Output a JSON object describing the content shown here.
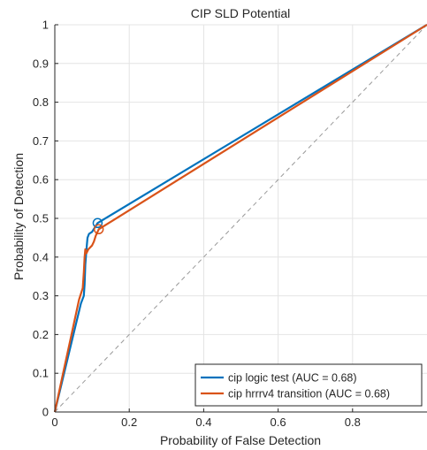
{
  "chart_data": {
    "type": "line",
    "title": "CIP SLD Potential",
    "xlabel": "Probability of False Detection",
    "ylabel": "Probability of Detection",
    "xlim": [
      0,
      1
    ],
    "ylim": [
      0,
      1
    ],
    "xticks": [
      0,
      0.2,
      0.4,
      0.6,
      0.8
    ],
    "xtick_labels": [
      "0",
      "0.2",
      "0.4",
      "0.6",
      "0.8"
    ],
    "yticks": [
      0,
      0.1,
      0.2,
      0.3,
      0.4,
      0.5,
      0.6,
      0.7,
      0.8,
      0.9,
      1
    ],
    "ytick_labels": [
      "0",
      "0.1",
      "0.2",
      "0.3",
      "0.4",
      "0.5",
      "0.6",
      "0.7",
      "0.8",
      "0.9",
      "1"
    ],
    "grid": true,
    "legend_position": "bottom-right",
    "reference_line": {
      "x": [
        0,
        1
      ],
      "y": [
        0,
        1
      ],
      "style": "dashed",
      "color": "#999999"
    },
    "series": [
      {
        "name": "cip logic test (AUC = 0.68)",
        "color": "#0072BD",
        "x": [
          0,
          0.02,
          0.045,
          0.07,
          0.078,
          0.08,
          0.082,
          0.085,
          0.088,
          0.092,
          0.1,
          0.115,
          1
        ],
        "y": [
          0,
          0.08,
          0.18,
          0.28,
          0.3,
          0.33,
          0.38,
          0.42,
          0.45,
          0.46,
          0.465,
          0.488,
          1
        ],
        "marker": {
          "x": 0.115,
          "y": 0.488
        }
      },
      {
        "name": "cip hrrrv4 transition (AUC = 0.68)",
        "color": "#D95319",
        "x": [
          0,
          0.02,
          0.045,
          0.065,
          0.075,
          0.078,
          0.08,
          0.082,
          0.085,
          0.09,
          0.1,
          0.105,
          0.11,
          0.118,
          1
        ],
        "y": [
          0,
          0.09,
          0.2,
          0.29,
          0.32,
          0.36,
          0.4,
          0.42,
          0.41,
          0.42,
          0.43,
          0.44,
          0.455,
          0.472,
          1
        ],
        "marker": {
          "x": 0.118,
          "y": 0.472
        }
      }
    ]
  }
}
